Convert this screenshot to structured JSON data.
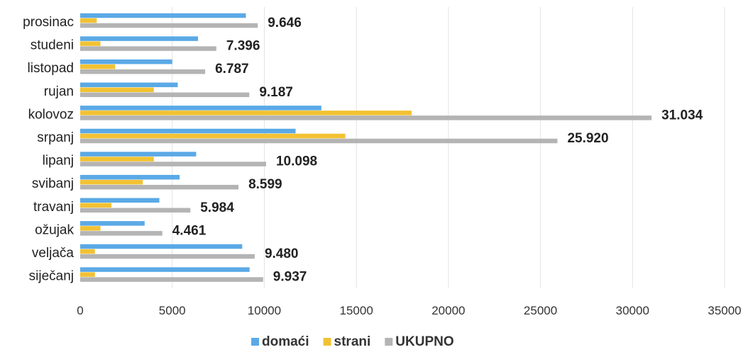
{
  "chart_data": {
    "type": "bar",
    "orientation": "horizontal",
    "categories": [
      "prosinac",
      "studeni",
      "listopad",
      "rujan",
      "kolovoz",
      "srpanj",
      "lipanj",
      "svibanj",
      "travanj",
      "ožujak",
      "veljača",
      "siječanj"
    ],
    "series": [
      {
        "name": "domaći",
        "color": "#5aa9e6",
        "values": [
          9000,
          6400,
          5000,
          5300,
          13100,
          11700,
          6300,
          5400,
          4300,
          3500,
          8800,
          9200
        ]
      },
      {
        "name": "strani",
        "color": "#f2c233",
        "values": [
          900,
          1100,
          1900,
          4000,
          18000,
          14400,
          4000,
          3400,
          1700,
          1100,
          800,
          800
        ]
      },
      {
        "name": "UKUPNO",
        "color": "#b4b4b4",
        "values": [
          9646,
          7396,
          6787,
          9187,
          31034,
          25920,
          10098,
          8599,
          5984,
          4461,
          9480,
          9937
        ]
      }
    ],
    "data_labels": [
      "9.646",
      "7.396",
      "6.787",
      "9.187",
      "31.034",
      "25.920",
      "10.098",
      "8.599",
      "5.984",
      "4.461",
      "9.480",
      "9.937"
    ],
    "x_ticks": [
      "0",
      "5000",
      "10000",
      "15000",
      "20000",
      "25000",
      "30000",
      "35000"
    ],
    "xlim": [
      0,
      35000
    ],
    "grid": true,
    "legend_position": "bottom"
  }
}
